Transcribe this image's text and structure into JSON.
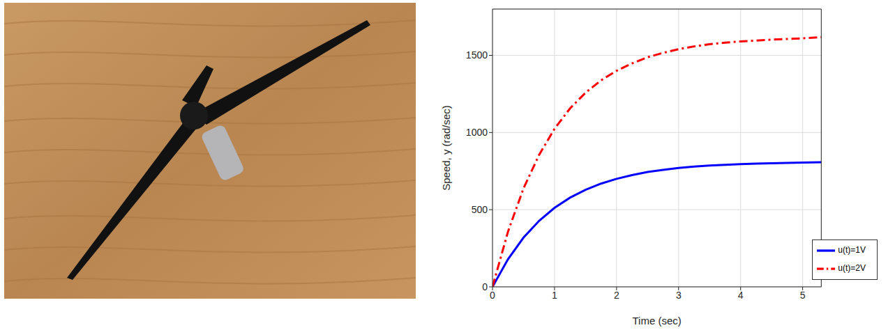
{
  "chart_data": {
    "type": "line",
    "xlabel": "Time (sec)",
    "ylabel": "Speed, y (rad/sec)",
    "x": [
      0,
      0.25,
      0.5,
      0.75,
      1,
      1.25,
      1.5,
      1.75,
      2,
      2.25,
      2.5,
      2.75,
      3,
      3.25,
      3.5,
      3.75,
      4,
      4.25,
      4.5,
      4.75,
      5,
      5.3
    ],
    "series": [
      {
        "name": "u(t)=1V",
        "color": "#0000ff",
        "line_style": "solid",
        "values": [
          0,
          179,
          319,
          427,
          512,
          578,
          629,
          669,
          700,
          724,
          744,
          758,
          770,
          779,
          786,
          791,
          795,
          798,
          801,
          803,
          805,
          808
        ]
      },
      {
        "name": "u(t)=2V",
        "color": "#ff0000",
        "line_style": "dashdot",
        "values": [
          0,
          358,
          638,
          854,
          1024,
          1156,
          1258,
          1338,
          1400,
          1448,
          1488,
          1516,
          1540,
          1558,
          1572,
          1582,
          1590,
          1596,
          1602,
          1606,
          1610,
          1618
        ]
      }
    ],
    "xlim": [
      0,
      5.3
    ],
    "ylim": [
      0,
      1800
    ],
    "xticks": [
      0,
      1,
      2,
      3,
      4,
      5
    ],
    "yticks": [
      0,
      500,
      1000,
      1500
    ],
    "grid": true,
    "legend": "bottom-right"
  }
}
